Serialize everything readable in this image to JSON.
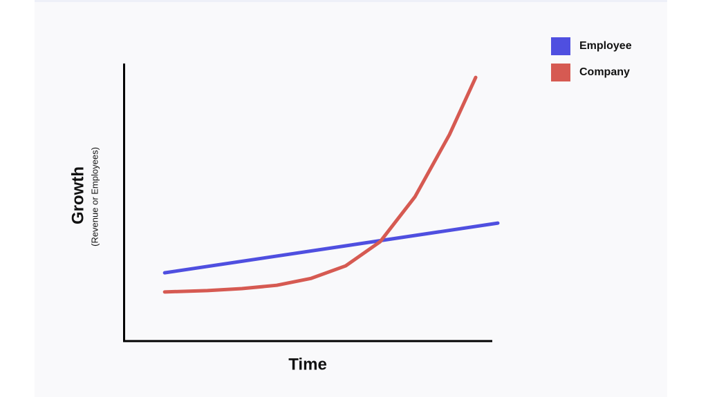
{
  "chart_data": {
    "type": "line",
    "y_label": "Growth",
    "y_sublabel": "(Revenue or Employees)",
    "x_label": "Time",
    "xlim": [
      0,
      100
    ],
    "ylim": [
      0,
      100
    ],
    "legend": "top-right",
    "series": [
      {
        "name": "Employee",
        "color": "#4f4fe0",
        "x": [
          11.1,
          100
        ],
        "values": [
          24.6,
          42.5
        ]
      },
      {
        "name": "Company",
        "color": "#d65a52",
        "x": [
          11.1,
          22.5,
          31.7,
          41.0,
          50.2,
          59.4,
          68.6,
          77.9,
          87.1,
          94.1
        ],
        "values": [
          17.7,
          18.2,
          18.9,
          20.1,
          22.6,
          27.1,
          35.8,
          52.0,
          74.4,
          95.0
        ]
      }
    ]
  }
}
